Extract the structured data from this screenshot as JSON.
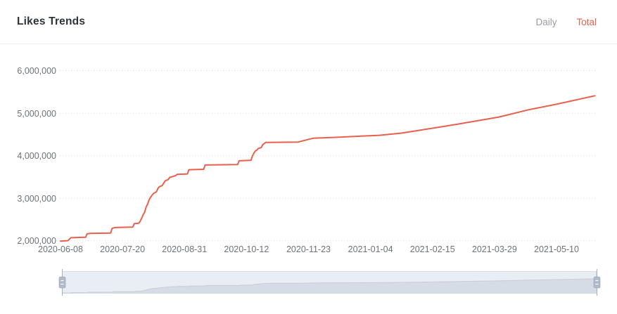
{
  "header": {
    "title": "Likes Trends",
    "tabs": [
      {
        "id": "daily",
        "label": "Daily",
        "active": false
      },
      {
        "id": "total",
        "label": "Total",
        "active": true
      }
    ]
  },
  "colors": {
    "title": "#2f3238",
    "line": "#e8604d",
    "tab_active": "#e8604d",
    "tab_inactive": "#9b9ba3",
    "axis_label": "#6e7277",
    "gridline": "#dadade",
    "divider": "#ebebed",
    "brush_bg": "#e9edf4",
    "brush_border": "#d5dae4",
    "brush_shadow_fill": "#d6dce6",
    "brush_shadow_edge": "#c6cdd9",
    "brush_handle_fill": "#b0bac9",
    "brush_handle_border": "#98a3b8",
    "brush_handle_line": "#a3aec2"
  },
  "chart_data": {
    "type": "line",
    "title": "Likes Trends",
    "series_name": "Total",
    "legend_position": "none",
    "grid": "horizontal-dotted",
    "ylim": [
      2000000,
      6000000
    ],
    "y_ticks": [
      "2,000,000",
      "3,000,000",
      "4,000,000",
      "5,000,000",
      "6,000,000"
    ],
    "x_ticks": [
      "2020-06-08",
      "2020-07-20",
      "2020-08-31",
      "2020-10-12",
      "2020-11-23",
      "2021-01-04",
      "2021-02-15",
      "2021-03-29",
      "2021-05-10"
    ],
    "points": [
      {
        "date": "2020-06-08",
        "value": 1980000
      },
      {
        "date": "2020-06-13",
        "value": 1990000
      },
      {
        "date": "2020-06-15",
        "value": 2060000
      },
      {
        "date": "2020-06-25",
        "value": 2070000
      },
      {
        "date": "2020-06-26",
        "value": 2150000
      },
      {
        "date": "2020-06-28",
        "value": 2160000
      },
      {
        "date": "2020-07-12",
        "value": 2170000
      },
      {
        "date": "2020-07-13",
        "value": 2280000
      },
      {
        "date": "2020-07-15",
        "value": 2300000
      },
      {
        "date": "2020-07-27",
        "value": 2310000
      },
      {
        "date": "2020-07-28",
        "value": 2390000
      },
      {
        "date": "2020-07-31",
        "value": 2400000
      },
      {
        "date": "2020-08-01",
        "value": 2450000
      },
      {
        "date": "2020-08-02",
        "value": 2520000
      },
      {
        "date": "2020-08-03",
        "value": 2600000
      },
      {
        "date": "2020-08-04",
        "value": 2660000
      },
      {
        "date": "2020-08-05",
        "value": 2780000
      },
      {
        "date": "2020-08-06",
        "value": 2850000
      },
      {
        "date": "2020-08-07",
        "value": 2950000
      },
      {
        "date": "2020-08-08",
        "value": 3010000
      },
      {
        "date": "2020-08-09",
        "value": 3060000
      },
      {
        "date": "2020-08-10",
        "value": 3100000
      },
      {
        "date": "2020-08-12",
        "value": 3140000
      },
      {
        "date": "2020-08-13",
        "value": 3220000
      },
      {
        "date": "2020-08-14",
        "value": 3260000
      },
      {
        "date": "2020-08-16",
        "value": 3290000
      },
      {
        "date": "2020-08-17",
        "value": 3350000
      },
      {
        "date": "2020-08-18",
        "value": 3400000
      },
      {
        "date": "2020-08-20",
        "value": 3430000
      },
      {
        "date": "2020-08-21",
        "value": 3480000
      },
      {
        "date": "2020-08-23",
        "value": 3500000
      },
      {
        "date": "2020-08-25",
        "value": 3520000
      },
      {
        "date": "2020-08-26",
        "value": 3550000
      },
      {
        "date": "2020-09-02",
        "value": 3560000
      },
      {
        "date": "2020-09-03",
        "value": 3660000
      },
      {
        "date": "2020-09-13",
        "value": 3670000
      },
      {
        "date": "2020-09-14",
        "value": 3770000
      },
      {
        "date": "2020-10-06",
        "value": 3780000
      },
      {
        "date": "2020-10-07",
        "value": 3870000
      },
      {
        "date": "2020-10-15",
        "value": 3880000
      },
      {
        "date": "2020-10-16",
        "value": 3980000
      },
      {
        "date": "2020-10-17",
        "value": 4050000
      },
      {
        "date": "2020-10-18",
        "value": 4100000
      },
      {
        "date": "2020-10-19",
        "value": 4120000
      },
      {
        "date": "2020-10-20",
        "value": 4160000
      },
      {
        "date": "2020-10-22",
        "value": 4180000
      },
      {
        "date": "2020-10-23",
        "value": 4250000
      },
      {
        "date": "2020-10-25",
        "value": 4300000
      },
      {
        "date": "2020-11-16",
        "value": 4310000
      },
      {
        "date": "2020-11-26",
        "value": 4400000
      },
      {
        "date": "2020-12-10",
        "value": 4420000
      },
      {
        "date": "2021-01-10",
        "value": 4470000
      },
      {
        "date": "2021-01-25",
        "value": 4520000
      },
      {
        "date": "2021-03-04",
        "value": 4730000
      },
      {
        "date": "2021-04-01",
        "value": 4900000
      },
      {
        "date": "2021-04-21",
        "value": 5070000
      },
      {
        "date": "2021-05-10",
        "value": 5200000
      },
      {
        "date": "2021-06-05",
        "value": 5400000
      }
    ]
  },
  "datazoom": {
    "type": "slider",
    "start_percent": 0,
    "end_percent": 100
  }
}
